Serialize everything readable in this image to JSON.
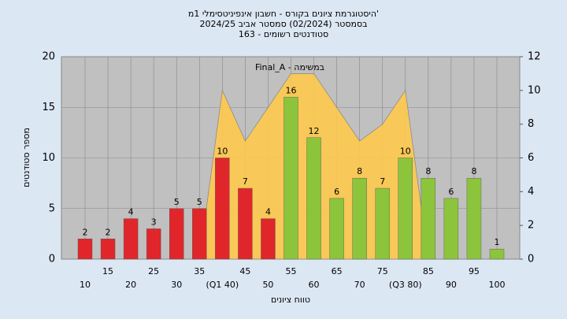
{
  "chart_data": {
    "type": "bar",
    "title": [
      "היסטוגרמת ציונים בקורס - חשבון אינפיניטסימלי 1מ'",
      "בסמסטר  (02/2024)  סמסטר אביב 2024/25",
      "סטודנטים רשומים - 163"
    ],
    "annotation": "Final_A - במשימה",
    "ylabel": "מספר סטודנטים",
    "xlabel": "טווח ציונים",
    "categories": [
      "10",
      "15",
      "20",
      "25",
      "30",
      "35",
      "(Q1 40)",
      "45",
      "50",
      "55",
      "60",
      "65",
      "70",
      "75",
      "(Q3 80)",
      "85",
      "90",
      "95",
      "100"
    ],
    "values": [
      2,
      2,
      4,
      3,
      5,
      5,
      10,
      7,
      4,
      16,
      12,
      6,
      8,
      7,
      10,
      8,
      6,
      8,
      1
    ],
    "colors": [
      "#e0262b",
      "#e0262b",
      "#e0262b",
      "#e0262b",
      "#e0262b",
      "#e0262b",
      "#e0262b",
      "#e0262b",
      "#e0262b",
      "#8cc43c",
      "#8cc43c",
      "#8cc43c",
      "#8cc43c",
      "#8cc43c",
      "#8cc43c",
      "#8cc43c",
      "#8cc43c",
      "#8cc43c",
      "#8cc43c"
    ],
    "area": {
      "color": "#ffc94d",
      "axis": "y2",
      "values": [
        null,
        null,
        null,
        null,
        null,
        0,
        10,
        7,
        9,
        11,
        11,
        9,
        7,
        8,
        10,
        0,
        null,
        null,
        null
      ]
    },
    "ylim": [
      0,
      20
    ],
    "yticks": [
      0,
      5,
      10,
      15,
      20
    ],
    "y2lim": [
      0,
      12
    ],
    "y2ticks": [
      0,
      2,
      4,
      6,
      8,
      10,
      12
    ],
    "grid": true
  }
}
